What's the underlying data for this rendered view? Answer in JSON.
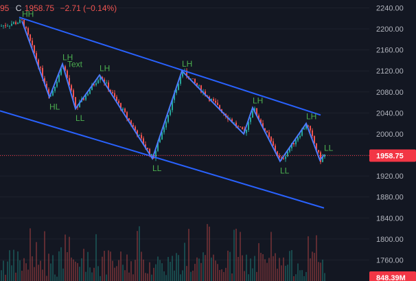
{
  "header": {
    "ohlc_tail": "95",
    "close_prefix": "C",
    "close": "1958.75",
    "change": "−2.71 (−0.14%)"
  },
  "colors": {
    "background": "#131722",
    "up": "#26a69a",
    "down": "#ef5350",
    "trendline": "#2962ff",
    "zigzag": "#4b7bff",
    "label": "#4caf50",
    "price_tag": "#f23645",
    "grid": "#1e222d",
    "axis_text": "#b2b5be"
  },
  "chart_data": {
    "type": "candlestick",
    "y_ticks": [
      1760,
      1800,
      1840,
      1880,
      1920,
      1960,
      2000,
      2040,
      2080,
      2120,
      2160,
      2200,
      2240
    ],
    "y_range": [
      1720,
      2255
    ],
    "last_price": 1958.75,
    "volume_label": "848.39M",
    "pivots": [
      {
        "label": "HH",
        "x": 32,
        "y": 2215
      },
      {
        "label": "HL",
        "x": 72,
        "y": 2070
      },
      {
        "label": "LH",
        "x": 91,
        "y": 2133
      },
      {
        "label": "LL",
        "x": 110,
        "y": 2048
      },
      {
        "label": "LH",
        "x": 145,
        "y": 2112
      },
      {
        "label": "LL",
        "x": 222,
        "y": 1953
      },
      {
        "label": "LH",
        "x": 265,
        "y": 2120
      },
      {
        "label": "",
        "x": 355,
        "y": 2000
      },
      {
        "label": "LH",
        "x": 368,
        "y": 2050
      },
      {
        "label": "LL",
        "x": 408,
        "y": 1948
      },
      {
        "label": "LH",
        "x": 446,
        "y": 2020
      },
      {
        "label": "",
        "x": 466,
        "y": 1950
      },
      {
        "label": "LL",
        "x": 472,
        "y": 1960
      }
    ],
    "channel_upper": [
      {
        "x": 28,
        "y": 2222
      },
      {
        "x": 467,
        "y": 2036
      }
    ],
    "channel_lower": [
      {
        "x": 0,
        "y": 2044
      },
      {
        "x": 472,
        "y": 1859
      }
    ],
    "annotations": [
      "Text"
    ]
  }
}
